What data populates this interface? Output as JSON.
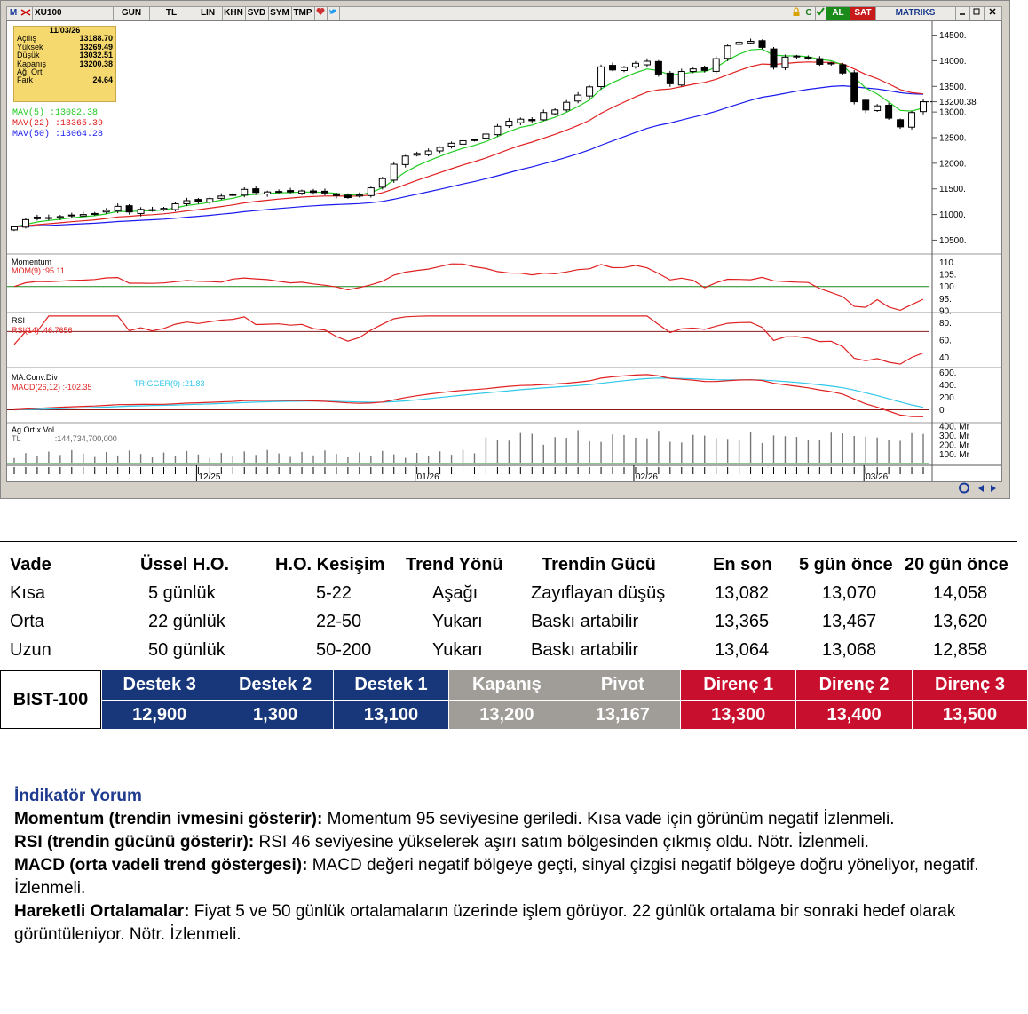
{
  "toolbar": {
    "logo": "M",
    "symbol": "XU100",
    "period": "GUN",
    "currency": "TL",
    "scales": [
      "LIN",
      "KHN",
      "SVD",
      "SYM",
      "TMP"
    ],
    "buy": "AL",
    "sell": "SAT",
    "brand": "MATRIKS"
  },
  "info_box": {
    "date": "11/03/26",
    "rows": [
      {
        "label": "Açılış",
        "value": "13188.70"
      },
      {
        "label": "Yüksek",
        "value": "13269.49"
      },
      {
        "label": "Düşük",
        "value": "13032.51"
      },
      {
        "label": "Kapanış",
        "value": "13200.38"
      },
      {
        "label": "Ağ. Ort",
        "value": ""
      },
      {
        "label": "Fark",
        "value": "24.64"
      }
    ]
  },
  "mav_labels": [
    {
      "name": "MAV(5)",
      "value": ":13082.38",
      "color": "#22cc22"
    },
    {
      "name": "MAV(22)",
      "value": ":13365.39",
      "color": "#e02020"
    },
    {
      "name": "MAV(50)",
      "value": ":13064.28",
      "color": "#1a1aee"
    }
  ],
  "panels": {
    "momentum": {
      "title": "Momentum",
      "label": "MOM(9)",
      "value": ":95.11"
    },
    "rsi": {
      "title": "RSI",
      "label": "RSI(14)",
      "value": ":46.7656"
    },
    "macd": {
      "title": "MA.Conv.Div",
      "label": "MACD(26,12)",
      "value": ":-102.35",
      "trigger_label": "TRIGGER(9)",
      "trigger_value": ":21.83"
    },
    "volume": {
      "title": "Ag.Ort x Vol",
      "currency": "TL",
      "value": ":144,734,700,000"
    }
  },
  "price_axis": [
    "14500.",
    "14000.",
    "13500.",
    "13200.38",
    "13000.",
    "12500.",
    "12000.",
    "11500.",
    "11000.",
    "10500."
  ],
  "mom_axis": [
    "110.",
    "105.",
    "100.",
    "95.",
    "90."
  ],
  "rsi_axis": [
    "80.",
    "60.",
    "40."
  ],
  "macd_axis": [
    "600.",
    "400.",
    "200.",
    "0"
  ],
  "vol_axis": [
    "400. Mr",
    "300. Mr",
    "200. Mr",
    "100. Mr"
  ],
  "date_axis": [
    "12/25",
    "01/26",
    "02/26",
    "03/26"
  ],
  "chart_data": {
    "type": "candlestick",
    "symbol": "XU100",
    "last_close": 13200.38,
    "ylim": [
      10300,
      14700
    ],
    "closes": [
      10760,
      10900,
      10950,
      10940,
      10960,
      10990,
      11000,
      11020,
      11080,
      11160,
      11050,
      11100,
      11080,
      11120,
      11210,
      11270,
      11260,
      11310,
      11360,
      11390,
      11490,
      11430,
      11440,
      11450,
      11440,
      11460,
      11430,
      11420,
      11370,
      11330,
      11380,
      11520,
      11700,
      11980,
      12140,
      12190,
      12240,
      12310,
      12390,
      12440,
      12460,
      12570,
      12720,
      12820,
      12860,
      12830,
      12990,
      13040,
      13190,
      13330,
      13490,
      13880,
      13820,
      13870,
      13950,
      13990,
      13740,
      13550,
      13790,
      13840,
      13810,
      14040,
      14290,
      14360,
      14380,
      14260,
      13870,
      14070,
      14090,
      14040,
      13930,
      13940,
      13760,
      13200,
      13040,
      13120,
      12880,
      12710,
      12990,
      13200
    ],
    "mav5_last": 13082.38,
    "mav22_last": 13365.39,
    "mav50_last": 13064.28,
    "momentum_last": 95.11,
    "rsi_last": 46.7656,
    "macd_last": -102.35,
    "trigger_last": 21.83
  },
  "trend_table": {
    "headers": [
      "Vade",
      "Üssel H.O.",
      "H.O. Kesişim",
      "Trend Yönü",
      "Trendin Gücü",
      "En son",
      "5 gün önce",
      "20 gün önce"
    ],
    "rows": [
      [
        "Kısa",
        "5 günlük",
        "5-22",
        "Aşağı",
        "Zayıflayan düşüş",
        "13,082",
        "13,070",
        "14,058"
      ],
      [
        "Orta",
        "22 günlük",
        "22-50",
        "Yukarı",
        "Baskı artabilir",
        "13,365",
        "13,467",
        "13,620"
      ],
      [
        "Uzun",
        "50 günlük",
        "50-200",
        "Yukarı",
        "Baskı artabilir",
        "13,064",
        "13,068",
        "12,858"
      ]
    ]
  },
  "levels": {
    "index": "BIST-100",
    "headers": [
      "Destek 3",
      "Destek 2",
      "Destek 1",
      "Kapanış",
      "Pivot",
      "Direnç 1",
      "Direnç 2",
      "Direnç 3"
    ],
    "values": [
      "12,900",
      "1,300",
      "13,100",
      "13,200",
      "13,167",
      "13,300",
      "13,400",
      "13,500"
    ],
    "colors": [
      "#17377a",
      "#17377a",
      "#17377a",
      "#a09d98",
      "#a09d98",
      "#c8102e",
      "#c8102e",
      "#c8102e"
    ]
  },
  "commentary": {
    "title": "İndikatör Yorum",
    "items": [
      {
        "label": "Momentum (trendin ivmesini gösterir):",
        "text": " Momentum 95 seviyesine geriledi. Kısa vade için görünüm negatif İzlenmeli."
      },
      {
        "label": "RSI (trendin gücünü gösterir):",
        "text": " RSI 46 seviyesine yükselerek aşırı satım bölgesinden çıkmış oldu. Nötr. İzlenmeli."
      },
      {
        "label": "MACD (orta vadeli trend göstergesi):",
        "text": " MACD değeri negatif bölgeye geçti, sinyal çizgisi negatif bölgeye doğru yöneliyor, negatif. İzlenmeli."
      },
      {
        "label": "Hareketli Ortalamalar:",
        "text": " Fiyat 5 ve 50 günlük ortalamaların üzerinde işlem görüyor. 22 günlük ortalama bir sonraki hedef olarak görüntüleniyor. Nötr. İzlenmeli."
      }
    ]
  }
}
